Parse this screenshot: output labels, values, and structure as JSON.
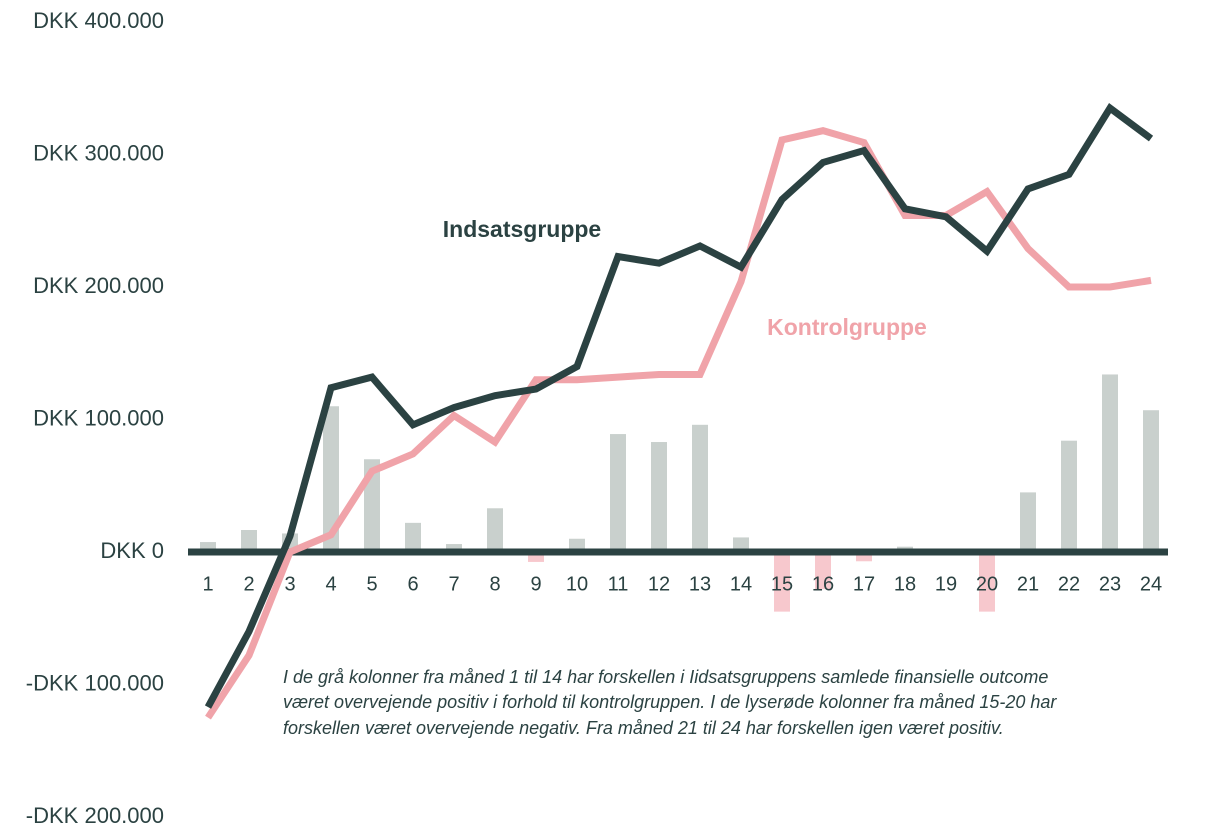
{
  "chart_data": {
    "type": "line",
    "categories": [
      "1",
      "2",
      "3",
      "4",
      "5",
      "6",
      "7",
      "8",
      "9",
      "10",
      "11",
      "12",
      "13",
      "14",
      "15",
      "16",
      "17",
      "18",
      "19",
      "20",
      "21",
      "22",
      "23",
      "24"
    ],
    "series": [
      {
        "name": "Indsatsgruppe",
        "color": "#2b4242",
        "values": [
          -117000,
          -60000,
          12000,
          124000,
          132000,
          96000,
          109000,
          118000,
          123000,
          140000,
          223000,
          218000,
          231000,
          215000,
          266000,
          294000,
          303000,
          259000,
          253000,
          227000,
          274000,
          285000,
          335000,
          312000
        ]
      },
      {
        "name": "Kontrolgruppe",
        "color": "#f0a3a9",
        "values": [
          -125000,
          -78000,
          0,
          13000,
          61000,
          74000,
          103000,
          83000,
          130000,
          130000,
          132000,
          134000,
          134000,
          204000,
          311000,
          318000,
          309000,
          254000,
          254000,
          272000,
          229000,
          200000,
          200000,
          205000
        ]
      }
    ],
    "bars": {
      "type": "bar",
      "color": "#c9d0cd",
      "negative_color": "#f7c8cd",
      "values": [
        7500,
        16600,
        14000,
        110000,
        70000,
        22000,
        6000,
        33000,
        -7500,
        10000,
        89000,
        83000,
        96000,
        11000,
        -45000,
        -28000,
        -7000,
        4000,
        1000,
        -45000,
        45000,
        84000,
        134000,
        107000
      ]
    },
    "ylim": [
      -200000,
      400000
    ],
    "yticks": [
      {
        "value": -200000,
        "label": "-DKK 200.000"
      },
      {
        "value": -100000,
        "label": "-DKK 100.000"
      },
      {
        "value": 0,
        "label": "DKK 0"
      },
      {
        "value": 100000,
        "label": "DKK 100.000"
      },
      {
        "value": 200000,
        "label": "DKK 200.000"
      },
      {
        "value": 300000,
        "label": "DKK 300.000"
      },
      {
        "value": 400000,
        "label": "DKK 400.000"
      }
    ],
    "note": [
      "I de grå kolonner fra måned 1 til 14 har forskellen i Iidsatsgruppens samlede finansielle outcome",
      "været overvejende positiv i forhold til kontrolgruppen. I de lyserøde kolonner fra måned 15-20 har",
      "forskellen været overvejende negativ. Fra måned 21 til 24 har forskellen igen været positiv."
    ]
  }
}
